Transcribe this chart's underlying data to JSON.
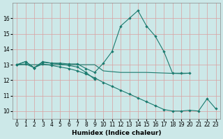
{
  "xlabel": "Humidex (Indice chaleur)",
  "bg_color": "#cce8e8",
  "grid_color": "#daa0a0",
  "line_color": "#1a7a6e",
  "xlim": [
    -0.5,
    23.5
  ],
  "ylim": [
    9.5,
    17.0
  ],
  "xticks": [
    0,
    1,
    2,
    3,
    4,
    5,
    6,
    7,
    8,
    9,
    10,
    11,
    12,
    13,
    14,
    15,
    16,
    17,
    18,
    19,
    20,
    21,
    22,
    23
  ],
  "yticks": [
    10,
    11,
    12,
    13,
    14,
    15,
    16
  ],
  "line1_x": [
    0,
    1,
    2,
    3,
    4,
    5,
    6,
    7,
    8,
    9,
    10,
    11,
    12,
    13,
    14,
    15,
    16,
    17,
    18,
    19,
    20
  ],
  "line1_y": [
    13.0,
    13.2,
    12.8,
    13.2,
    13.1,
    13.1,
    13.05,
    13.05,
    12.75,
    12.5,
    13.1,
    13.85,
    15.5,
    16.0,
    16.5,
    15.5,
    14.85,
    13.85,
    12.45,
    12.45,
    12.45
  ],
  "line2_x": [
    0,
    1,
    2,
    3,
    4,
    5,
    6,
    7,
    8,
    9
  ],
  "line2_y": [
    13.0,
    13.2,
    12.8,
    13.15,
    13.1,
    13.05,
    12.95,
    12.85,
    12.5,
    12.05
  ],
  "line3_x": [
    0,
    9,
    10,
    11,
    12,
    13,
    14,
    15,
    16,
    17,
    18,
    19,
    20
  ],
  "line3_y": [
    13.0,
    13.0,
    12.6,
    12.55,
    12.5,
    12.5,
    12.5,
    12.5,
    12.48,
    12.46,
    12.44,
    12.42,
    12.45
  ],
  "line4_x": [
    0,
    1,
    2,
    3,
    4,
    5,
    6,
    7,
    8,
    9,
    10,
    11,
    12,
    13,
    14,
    15,
    16,
    17,
    18,
    19,
    20,
    21,
    22,
    23
  ],
  "line4_y": [
    13.0,
    13.05,
    12.8,
    13.05,
    12.95,
    12.85,
    12.75,
    12.6,
    12.4,
    12.15,
    11.85,
    11.6,
    11.35,
    11.1,
    10.85,
    10.6,
    10.35,
    10.1,
    10.0,
    10.0,
    10.05,
    10.0,
    10.8,
    10.15
  ]
}
